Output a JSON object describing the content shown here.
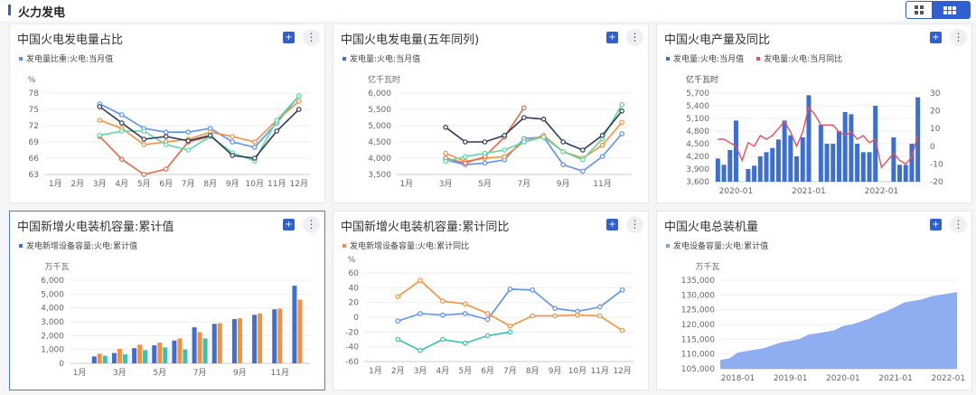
{
  "header": {
    "title": "火力发电"
  },
  "icons": {
    "grid_view": "grid-view-icon",
    "list_view": "list-view-icon",
    "expand": "expand-icon",
    "more": "more-icon"
  },
  "panels": [
    {
      "title": "中国火电发电量占比"
    },
    {
      "title": "中国火电发电量(五年同列)"
    },
    {
      "title": "中国火电产量及同比"
    },
    {
      "title": "中国新增火电装机容量:累计值"
    },
    {
      "title": "中国新增火电装机容量:累计同比"
    },
    {
      "title": "中国火电总装机量"
    }
  ],
  "chart_data": [
    {
      "type": "line",
      "legend": [
        "发电量比重:火电:当月值"
      ],
      "ylabel": "%",
      "ylim": [
        63,
        78
      ],
      "yticks": [
        63,
        66,
        69,
        72,
        75,
        78
      ],
      "categories": [
        "1月",
        "2月",
        "3月",
        "4月",
        "5月",
        "6月",
        "7月",
        "8月",
        "9月",
        "10月",
        "11月",
        "12月"
      ],
      "series": [
        {
          "color": "#5b8ff9",
          "values": [
            null,
            null,
            76.0,
            74.0,
            71.5,
            70.8,
            70.8,
            71.5,
            69.0,
            68.0,
            72.5,
            77.5
          ]
        },
        {
          "color": "#f6903d",
          "values": [
            null,
            null,
            73.0,
            71.5,
            68.5,
            69.0,
            69.5,
            70.8,
            70.0,
            69.0,
            73.0,
            76.5
          ]
        },
        {
          "color": "#e8684a",
          "values": [
            null,
            null,
            70.0,
            65.8,
            63.0,
            64.0,
            69.0,
            70.0,
            null,
            null,
            null,
            null
          ]
        },
        {
          "color": "#5ad8a6",
          "values": [
            null,
            null,
            70.2,
            71.0,
            71.0,
            68.5,
            67.5,
            70.0,
            67.0,
            65.5,
            73.0,
            77.5
          ]
        },
        {
          "color": "#2e3b5c",
          "values": [
            null,
            null,
            75.5,
            72.5,
            69.5,
            70.0,
            69.2,
            70.2,
            66.5,
            66.0,
            71.0,
            75.0
          ]
        }
      ]
    },
    {
      "type": "line",
      "legend": [
        "发电量:火电:当月值"
      ],
      "ylabel": "亿千瓦时",
      "ylim": [
        3500,
        6000
      ],
      "yticks": [
        3500,
        4000,
        4500,
        5000,
        5500,
        6000
      ],
      "yticklabels": [
        "3,500",
        "4,000",
        "4,500",
        "5,000",
        "5,500",
        "6,000"
      ],
      "categories": [
        "1月",
        "2月",
        "3月",
        "4月",
        "5月",
        "6月",
        "7月",
        "8月",
        "9月",
        "10月",
        "11月",
        "12月"
      ],
      "xticklabels": [
        "1月",
        "",
        "3月",
        "",
        "5月",
        "",
        "7月",
        "",
        "9月",
        "",
        "11月",
        ""
      ],
      "series": [
        {
          "color": "#5b8ff9",
          "values": [
            null,
            null,
            3950,
            3800,
            3850,
            3950,
            4600,
            4650,
            3800,
            3600,
            4050,
            4750
          ]
        },
        {
          "color": "#f6903d",
          "values": [
            null,
            null,
            4150,
            3900,
            4000,
            4050,
            4500,
            4700,
            4200,
            4000,
            4400,
            5100
          ]
        },
        {
          "color": "#e8684a",
          "values": [
            null,
            null,
            4000,
            3850,
            4050,
            4650,
            5550,
            null,
            null,
            null,
            null,
            null
          ]
        },
        {
          "color": "#5ad8a6",
          "values": [
            null,
            null,
            3900,
            4050,
            4150,
            4250,
            4500,
            4650,
            4200,
            3950,
            4600,
            5650
          ]
        },
        {
          "color": "#2e3b5c",
          "values": [
            null,
            null,
            4950,
            4500,
            4500,
            4700,
            5250,
            5200,
            4500,
            4250,
            4700,
            5450
          ]
        }
      ]
    },
    {
      "type": "bar",
      "legend": [
        "发电量:火电:当月值",
        "发电量:火电:当月同比"
      ],
      "ylabel": "亿千瓦时",
      "ylim": [
        3600,
        5700
      ],
      "yticks": [
        3600,
        3900,
        4200,
        4500,
        4800,
        5100,
        5400,
        5700
      ],
      "yticklabels": [
        "3,600",
        "3,900",
        "4,200",
        "4,500",
        "4,800",
        "5,100",
        "5,400",
        "5,700"
      ],
      "y2lim": [
        -20,
        30
      ],
      "y2ticks": [
        -20,
        -10,
        0,
        10,
        20,
        30
      ],
      "xticklabels": [
        "2020-01",
        "2021-01",
        "2022-01"
      ],
      "series": [
        {
          "name": "发电量:火电:当月值",
          "color": "#3c6fd1",
          "values": [
            4150,
            4000,
            4350,
            5050,
            null,
            3900,
            3980,
            4200,
            4300,
            4400,
            4600,
            5050,
            4700,
            4200,
            4650,
            5650,
            null,
            4950,
            4500,
            4500,
            4800,
            5250,
            5200,
            4500,
            4300,
            4300,
            5400,
            null,
            null,
            4650,
            4000,
            4000,
            4500,
            5600
          ]
        },
        {
          "name": "发电量:火电:当月同比",
          "color": "#e8505b",
          "values": [
            4,
            4,
            2,
            0,
            -8,
            2,
            0,
            6,
            4,
            6,
            10,
            14,
            8,
            0,
            8,
            22,
            18,
            12,
            12,
            12,
            8,
            6,
            8,
            4,
            6,
            2,
            4,
            -12,
            -8,
            -4,
            -8,
            -10,
            -6,
            6
          ]
        }
      ]
    },
    {
      "type": "bar",
      "legend": [
        "发电新增设备容量:火电:累计值"
      ],
      "ylabel": "万千瓦",
      "ylim": [
        0,
        6000
      ],
      "yticks": [
        0,
        1000,
        2000,
        3000,
        4000,
        5000,
        6000
      ],
      "yticklabels": [
        "0",
        "1,000",
        "2,000",
        "3,000",
        "4,000",
        "5,000",
        "6,000"
      ],
      "categories": [
        "1月",
        "2月",
        "3月",
        "4月",
        "5月",
        "6月",
        "7月",
        "8月",
        "9月",
        "10月",
        "11月",
        "12月"
      ],
      "xticklabels": [
        "1月",
        "",
        "3月",
        "",
        "5月",
        "",
        "7月",
        "",
        "9月",
        "",
        "11月",
        ""
      ],
      "series": [
        {
          "color": "#3c6fd1",
          "values": [
            null,
            500,
            750,
            1100,
            1300,
            1650,
            2600,
            2850,
            3200,
            3500,
            3900,
            5600
          ]
        },
        {
          "color": "#f6903d",
          "values": [
            null,
            700,
            1050,
            1350,
            1500,
            1800,
            2250,
            2900,
            3250,
            3600,
            3950,
            4600
          ]
        },
        {
          "color": "#36c3b3",
          "values": [
            null,
            550,
            650,
            950,
            1150,
            1000,
            1800,
            null,
            null,
            null,
            null,
            null
          ]
        }
      ]
    },
    {
      "type": "line",
      "legend": [
        "发电新增设备容量:火电:累计同比"
      ],
      "ylabel": "%",
      "ylim": [
        -60,
        60
      ],
      "yticks": [
        -60,
        -40,
        -20,
        0,
        20,
        40,
        60
      ],
      "categories": [
        "1月",
        "2月",
        "3月",
        "4月",
        "5月",
        "6月",
        "7月",
        "8月",
        "9月",
        "10月",
        "11月",
        "12月"
      ],
      "series": [
        {
          "color": "#5b8ff9",
          "values": [
            null,
            -5,
            5,
            3,
            5,
            -3,
            38,
            37,
            12,
            8,
            14,
            37
          ]
        },
        {
          "color": "#f6903d",
          "values": [
            null,
            28,
            50,
            22,
            18,
            5,
            -12,
            2,
            2,
            3,
            2,
            -18
          ]
        },
        {
          "color": "#36c3b3",
          "values": [
            null,
            -30,
            -45,
            -30,
            -35,
            -25,
            -20,
            null,
            null,
            null,
            null,
            null
          ]
        }
      ]
    },
    {
      "type": "area",
      "legend": [
        "发电设备容量:火电:累计值"
      ],
      "ylabel": "万千瓦",
      "ylim": [
        105000,
        135000
      ],
      "yticks": [
        105000,
        110000,
        115000,
        120000,
        125000,
        130000,
        135000
      ],
      "yticklabels": [
        "105,000",
        "110,000",
        "115,000",
        "120,000",
        "125,000",
        "130,000",
        "135,000"
      ],
      "xticklabels": [
        "2018-01",
        "2019-01",
        "2020-01",
        "2021-01",
        "2022-01"
      ],
      "series": [
        {
          "color": "#7aa0ee",
          "values": [
            108000,
            108500,
            110500,
            111000,
            111500,
            112000,
            113000,
            114000,
            114500,
            115000,
            116500,
            117000,
            117500,
            118000,
            119500,
            120000,
            121000,
            122000,
            123500,
            124500,
            126000,
            127500,
            128000,
            128500,
            129500,
            130000,
            130500,
            131000
          ]
        }
      ]
    }
  ]
}
